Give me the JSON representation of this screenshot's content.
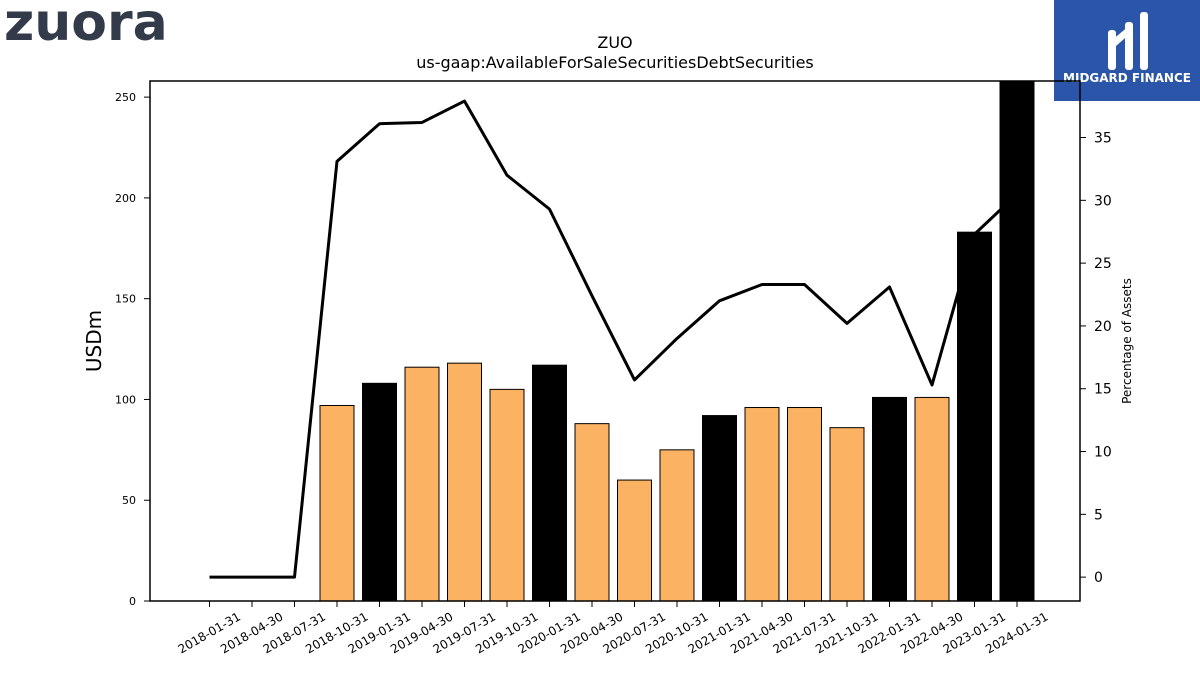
{
  "logos": {
    "company_wordmark": "zuora",
    "sponsor_name": "MIDGARD FINANCE",
    "sponsor_bg": "#2A55A8"
  },
  "chart_data": {
    "type": "bar",
    "title": "ZUO",
    "subtitle": "us-gaap:AvailableForSaleSecuritiesDebtSecurities",
    "ylabel": "USDm",
    "y2label": "Percentage of Assets",
    "categories": [
      "2018-01-31",
      "2018-04-30",
      "2018-07-31",
      "2018-10-31",
      "2019-01-31",
      "2019-04-30",
      "2019-07-31",
      "2019-10-31",
      "2020-01-31",
      "2020-04-30",
      "2020-07-31",
      "2020-10-31",
      "2021-01-31",
      "2021-04-30",
      "2021-07-31",
      "2021-10-31",
      "2022-01-31",
      "2022-04-30",
      "2023-01-31",
      "2024-01-31"
    ],
    "ylim": [
      0,
      258
    ],
    "yticks": [
      0,
      50,
      100,
      150,
      200,
      250
    ],
    "y2lim": [
      -1.9,
      39.5
    ],
    "y2ticks": [
      0,
      5,
      10,
      15,
      20,
      25,
      30,
      35
    ],
    "series": [
      {
        "kind": "bar",
        "values": [
          0,
          0,
          0,
          97,
          108,
          116,
          118,
          105,
          117,
          88,
          60,
          75,
          92,
          96,
          96,
          86,
          101,
          101,
          183,
          258
        ],
        "colors": [
          "#FBB263",
          "#FBB263",
          "#FBB263",
          "#FBB263",
          "#000000",
          "#FBB263",
          "#FBB263",
          "#FBB263",
          "#000000",
          "#FBB263",
          "#FBB263",
          "#FBB263",
          "#000000",
          "#FBB263",
          "#FBB263",
          "#FBB263",
          "#000000",
          "#FBB263",
          "#000000",
          "#000000"
        ]
      },
      {
        "kind": "line",
        "axis": "right",
        "values": [
          0,
          0,
          0,
          33.1,
          36.1,
          36.2,
          37.9,
          32.0,
          29.3,
          22.4,
          15.7,
          19.0,
          22.0,
          23.3,
          23.3,
          20.2,
          23.1,
          15.3,
          27.3,
          30.5
        ]
      }
    ]
  }
}
